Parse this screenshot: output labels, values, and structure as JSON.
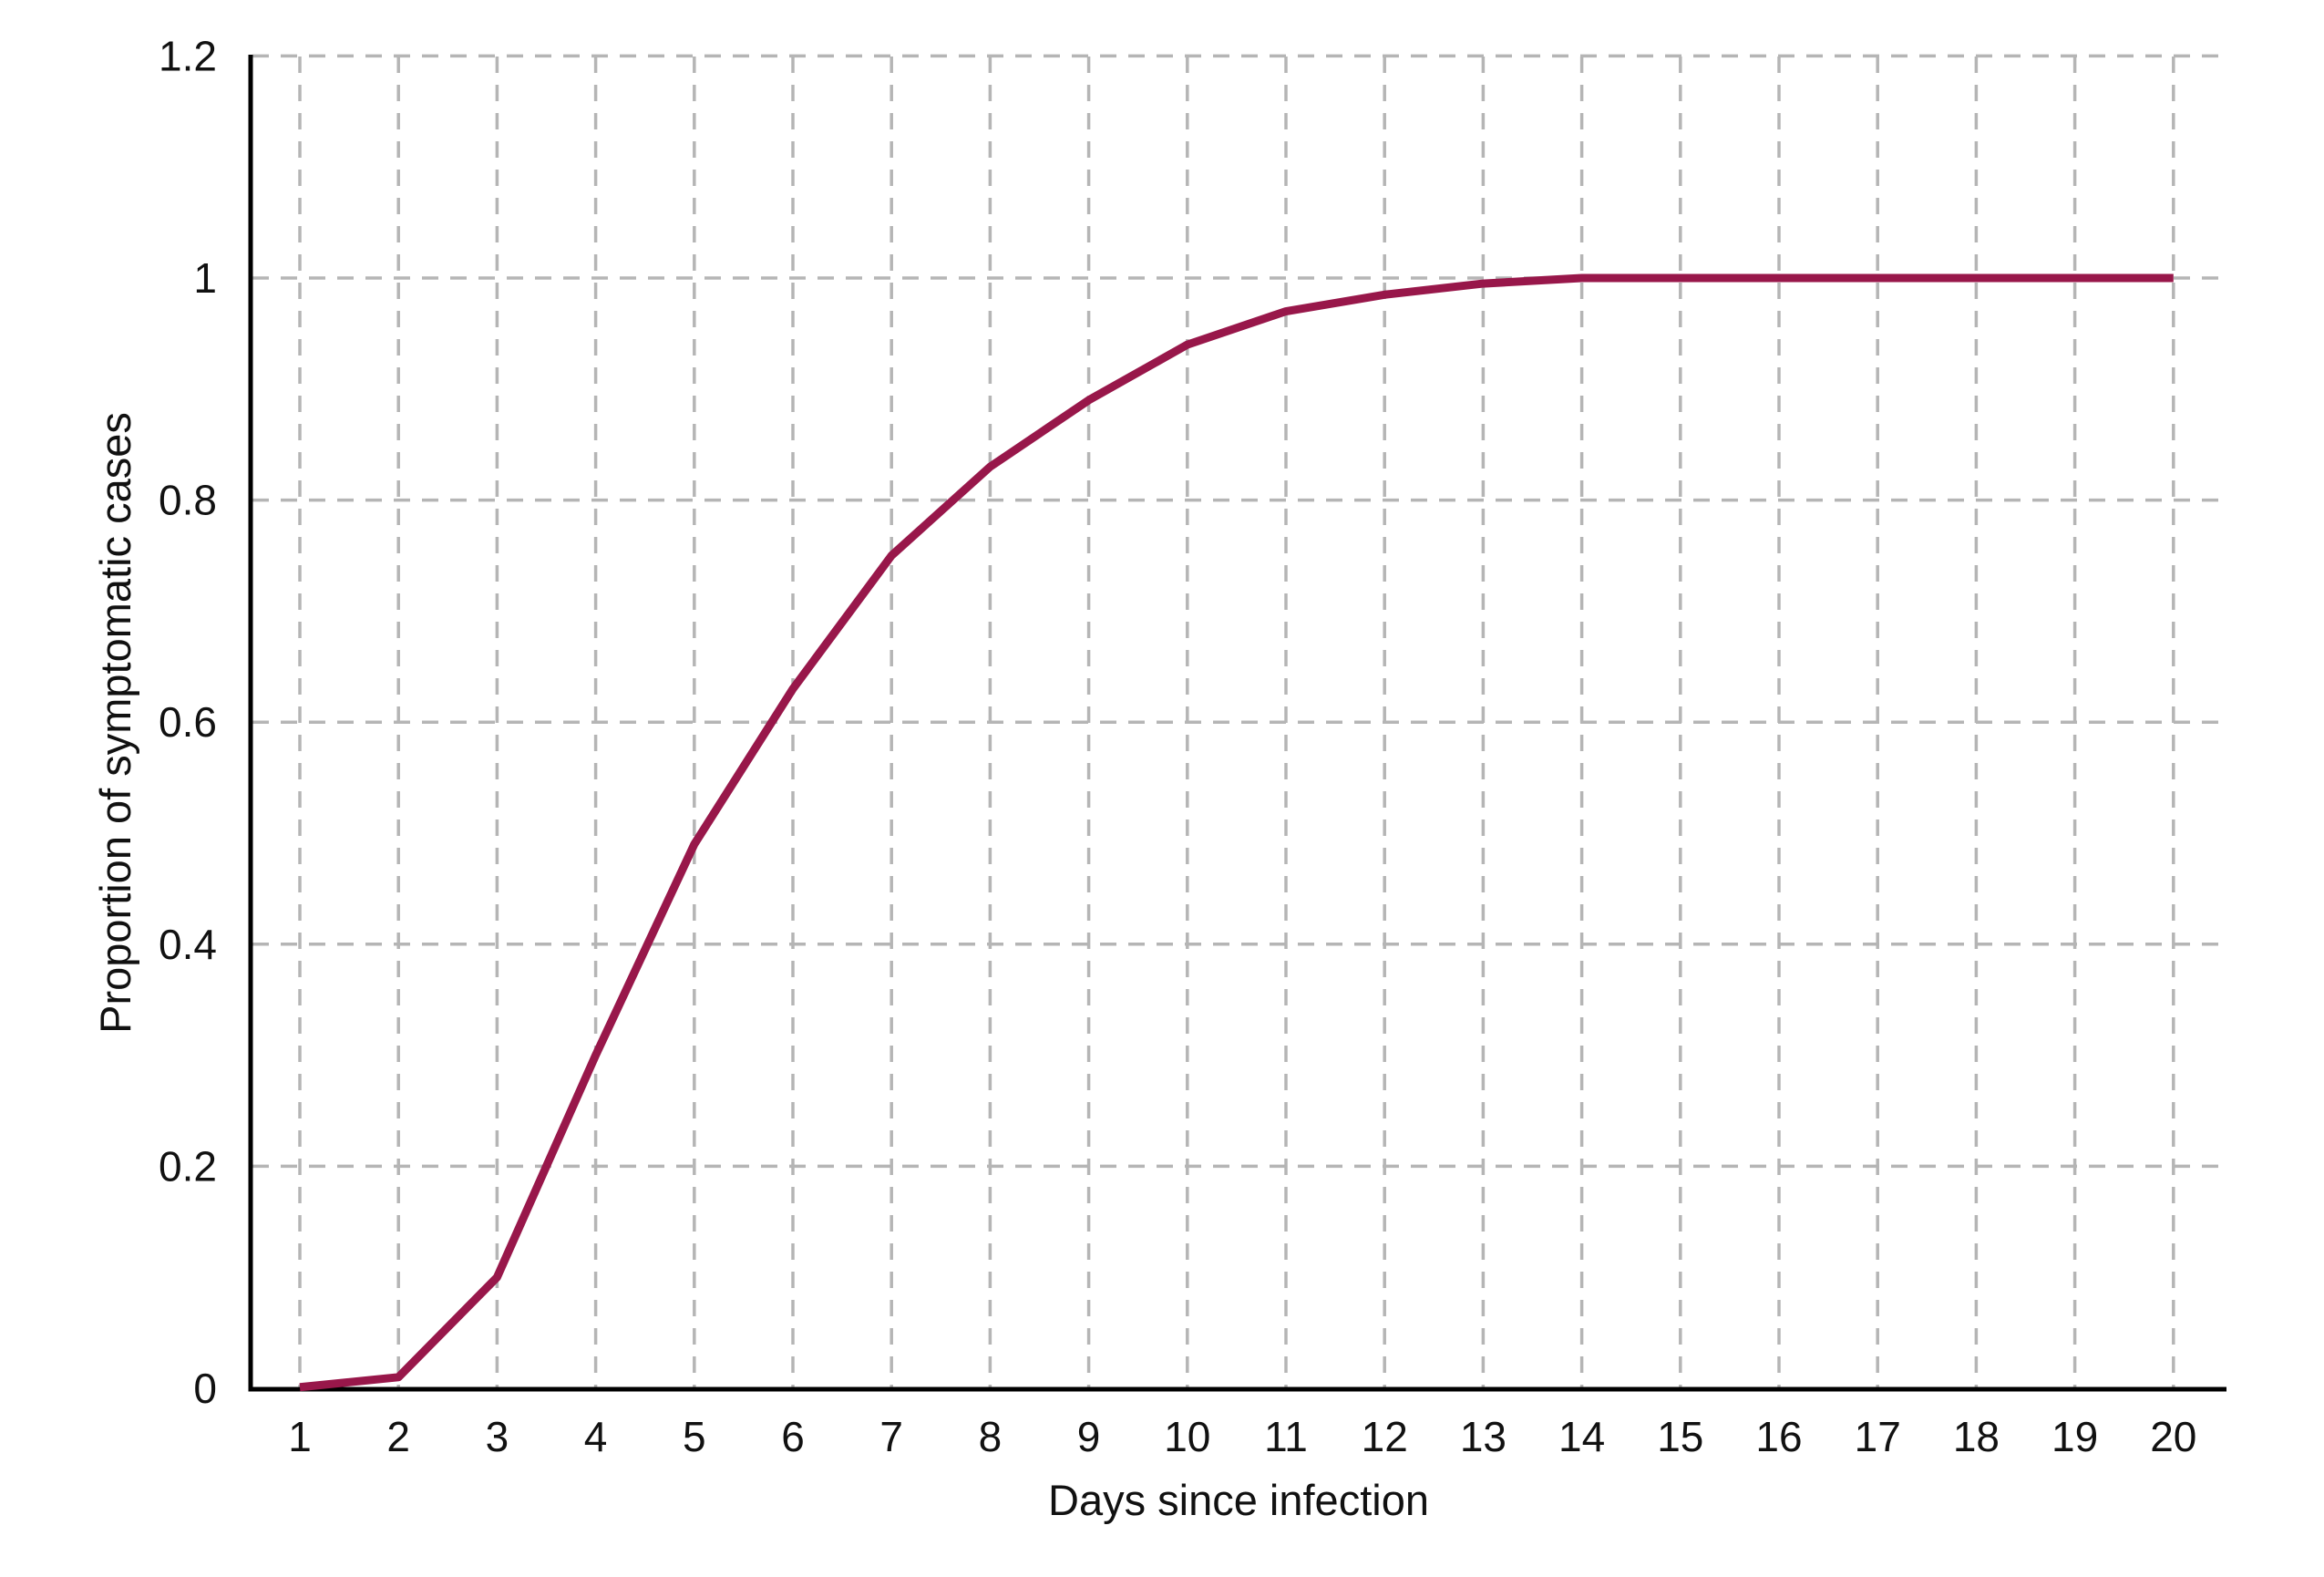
{
  "chart_data": {
    "type": "line",
    "title": "",
    "xlabel": "Days since infection",
    "ylabel": "Proportion of symptomatic cases",
    "x": [
      1,
      2,
      3,
      4,
      5,
      6,
      7,
      8,
      9,
      10,
      11,
      12,
      13,
      14,
      15,
      16,
      17,
      18,
      19,
      20
    ],
    "series": [
      {
        "name": "Proportion of symptomatic cases",
        "values": [
          0.001,
          0.01,
          0.1,
          0.3,
          0.49,
          0.63,
          0.75,
          0.83,
          0.89,
          0.94,
          0.97,
          0.985,
          0.995,
          1,
          1,
          1,
          1,
          1,
          1,
          1
        ]
      }
    ],
    "x_tick_labels": [
      "1",
      "2",
      "3",
      "4",
      "5",
      "6",
      "7",
      "8",
      "9",
      "10",
      "11",
      "12",
      "13",
      "14",
      "15",
      "16",
      "17",
      "18",
      "19",
      "20"
    ],
    "y_ticks": [
      0,
      0.2,
      0.4,
      0.6,
      0.8,
      1,
      1.2
    ],
    "y_tick_labels": [
      "0",
      "0.2",
      "0.4",
      "0.6",
      "0.8",
      "1",
      "1.2"
    ],
    "ylim": [
      0,
      1.2
    ],
    "xlim": [
      1,
      20
    ],
    "grid": "dashed vertical gridline at every day, dashed horizontal gridline every 0.2",
    "legend_position": "none",
    "style": {
      "line_color": "#98174a",
      "gridline_color": "#b5b5b5",
      "axis_color": "#000000",
      "text_color": "#111111",
      "background_color": "#ffffff"
    }
  }
}
